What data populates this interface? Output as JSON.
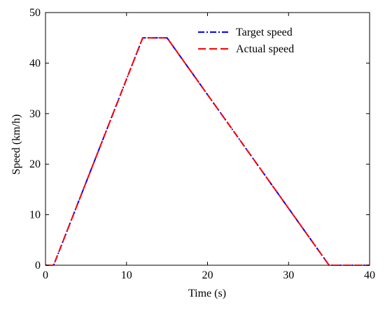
{
  "chart_data": {
    "type": "line",
    "title": "",
    "xlabel": "Time (s)",
    "ylabel": "Speed (km/h)",
    "xlim": [
      0,
      40
    ],
    "ylim": [
      0,
      50
    ],
    "xticks": [
      0,
      10,
      20,
      30,
      40
    ],
    "yticks": [
      0,
      10,
      20,
      30,
      40,
      50
    ],
    "grid": false,
    "legend_position": "top-right",
    "series": [
      {
        "name": "Target speed",
        "color": "#0000ff",
        "style": "dash-dot",
        "x": [
          0,
          1,
          12,
          15,
          35,
          40
        ],
        "y": [
          0,
          0,
          45,
          45,
          0,
          0
        ]
      },
      {
        "name": "Actual speed",
        "color": "#ff0000",
        "style": "dashed",
        "x": [
          0,
          1,
          12,
          15,
          35,
          40
        ],
        "y": [
          0,
          0,
          45,
          45,
          0,
          0
        ]
      }
    ]
  }
}
